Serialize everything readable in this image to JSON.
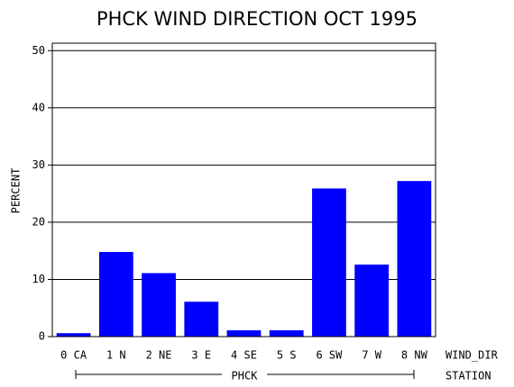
{
  "chart_data": {
    "type": "bar",
    "title": "PHCK WIND DIRECTION OCT 1995",
    "y_label": "PERCENT",
    "x_label": "WIND_DIR",
    "group_label": "PHCK",
    "group_axis_label": "STATION",
    "categories": [
      "0 CA",
      "1 N",
      "2 NE",
      "3 E",
      "4 SE",
      "5 S",
      "6 SW",
      "7 W",
      "8 NW"
    ],
    "values": [
      0.6,
      14.8,
      11.1,
      6.1,
      1.1,
      1.1,
      25.9,
      12.6,
      27.2
    ],
    "color": "#0000ff",
    "ylim": [
      0,
      51.3
    ],
    "yticks": [
      0,
      10,
      20,
      30,
      40,
      50
    ],
    "grid": true
  }
}
